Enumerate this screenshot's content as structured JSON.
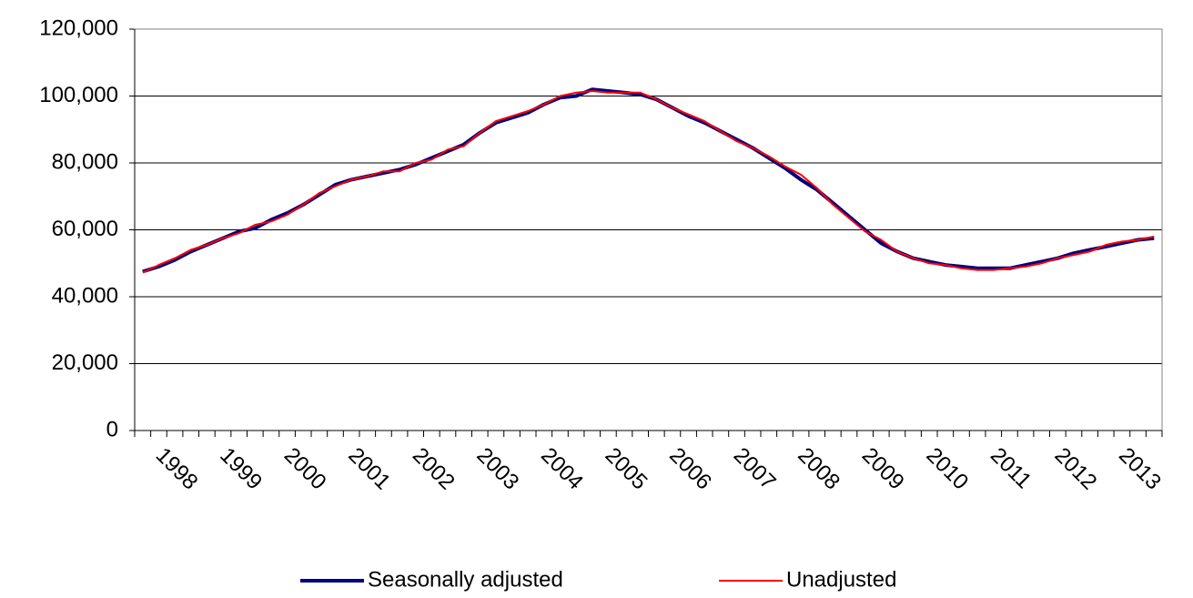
{
  "chart_data": {
    "type": "line",
    "categories": [
      null,
      "1998",
      null,
      null,
      null,
      "1999",
      null,
      null,
      null,
      "2000",
      null,
      null,
      null,
      "2001",
      null,
      null,
      null,
      "2002",
      null,
      null,
      null,
      "2003",
      null,
      null,
      null,
      "2004",
      null,
      null,
      null,
      "2005",
      null,
      null,
      null,
      "2006",
      null,
      null,
      null,
      "2007",
      null,
      null,
      null,
      "2008",
      null,
      null,
      null,
      "2009",
      null,
      null,
      null,
      "2010",
      null,
      null,
      null,
      "2011",
      null,
      null,
      null,
      "2012",
      null,
      null,
      null,
      "2013",
      null,
      null
    ],
    "series": [
      {
        "name": "Seasonally adjusted",
        "color": "#000080",
        "values": [
          47500,
          49000,
          51000,
          53500,
          55500,
          57500,
          59500,
          60500,
          63000,
          65000,
          67500,
          70500,
          73500,
          75000,
          76000,
          77000,
          78000,
          79500,
          81500,
          83500,
          85500,
          89000,
          92000,
          93500,
          95000,
          97500,
          99500,
          100000,
          102000,
          101500,
          101000,
          100500,
          99000,
          96500,
          94000,
          92000,
          89500,
          87000,
          84500,
          81500,
          78500,
          75000,
          72000,
          68000,
          64000,
          60000,
          56000,
          53500,
          51500,
          50500,
          49500,
          49000,
          48500,
          48500,
          48500,
          49500,
          50500,
          51500,
          53000,
          54000,
          55000,
          56000,
          57000,
          57500
        ]
      },
      {
        "name": "Unadjusted",
        "color": "#ff0000",
        "values": [
          47200,
          49500,
          51500,
          54000,
          55500,
          57500,
          59000,
          61500,
          62500,
          64500,
          67500,
          71000,
          73000,
          75000,
          76000,
          77500,
          77500,
          80000,
          81000,
          84000,
          85000,
          89000,
          92500,
          94000,
          95500,
          97500,
          100000,
          101000,
          101500,
          101000,
          101000,
          101000,
          99000,
          96500,
          94500,
          92500,
          89500,
          86500,
          84500,
          82000,
          79000,
          76500,
          72500,
          67500,
          63500,
          59500,
          57000,
          53500,
          51500,
          50000,
          49500,
          48500,
          48000,
          48000,
          48500,
          49000,
          50000,
          51500,
          52500,
          53500,
          55500,
          56500,
          57000,
          58000
        ]
      }
    ],
    "ylim": [
      0,
      120000
    ],
    "yticks": [
      0,
      {
        "value": 20000,
        "label": "20,000"
      },
      {
        "value": 40000,
        "label": "40,000"
      },
      {
        "value": 60000,
        "label": "60,000"
      },
      {
        "value": 80000,
        "label": "80,000"
      },
      {
        "value": 100000,
        "label": "100,000"
      },
      {
        "value": 120000,
        "label": "120,000"
      }
    ],
    "grid": true
  }
}
